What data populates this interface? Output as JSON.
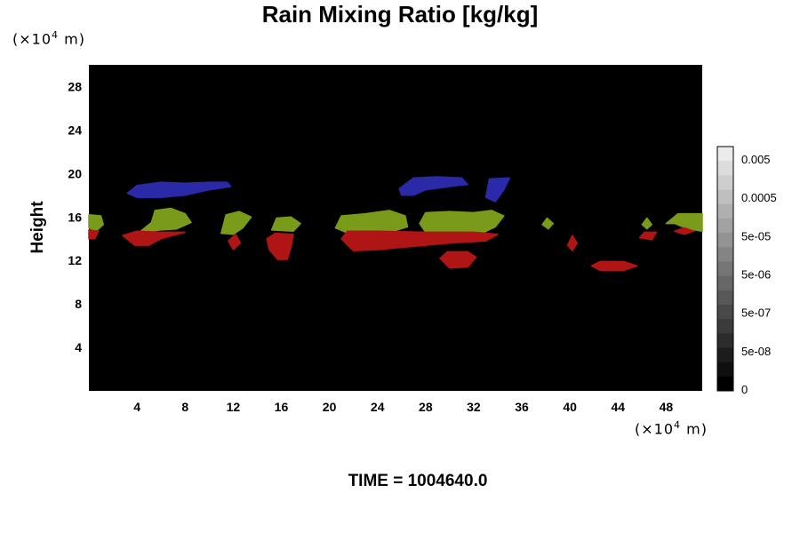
{
  "chart_data": {
    "type": "heatmap",
    "title": "Rain Mixing Ratio [kg/kg]",
    "ylabel": "Height",
    "xlabel": "",
    "x_unit": {
      "base": "(×10",
      "exp": "4",
      "tail": " m)"
    },
    "y_unit": {
      "base": "(×10",
      "exp": "4",
      "tail": " m)"
    },
    "xlim": [
      0,
      51
    ],
    "ylim": [
      0,
      30
    ],
    "x_ticks": [
      4,
      8,
      12,
      16,
      20,
      24,
      28,
      32,
      36,
      40,
      44,
      48
    ],
    "y_ticks": [
      4,
      8,
      12,
      16,
      20,
      24,
      28
    ],
    "background_color": "#000000",
    "colorbar": {
      "tick_labels": [
        "0.005",
        "0.0005",
        "5e-05",
        "5e-06",
        "5e-07",
        "5e-08",
        "0"
      ],
      "levels": 17
    },
    "regions": [
      {
        "color": "#2a2aa8",
        "points": [
          [
            3.2,
            18.2
          ],
          [
            4,
            18.9
          ],
          [
            6,
            19.2
          ],
          [
            8,
            19.1
          ],
          [
            10,
            19.2
          ],
          [
            11.5,
            19.2
          ],
          [
            11.8,
            18.8
          ],
          [
            10,
            18.5
          ],
          [
            8,
            18
          ],
          [
            6,
            17.8
          ],
          [
            4,
            17.8
          ]
        ]
      },
      {
        "color": "#2a2aa8",
        "points": [
          [
            25.8,
            18.6
          ],
          [
            27,
            19.6
          ],
          [
            29,
            19.7
          ],
          [
            31,
            19.6
          ],
          [
            31.5,
            19
          ],
          [
            30,
            18.8
          ],
          [
            28,
            18.5
          ],
          [
            27,
            18
          ],
          [
            26,
            18
          ]
        ]
      },
      {
        "color": "#2a2aa8",
        "points": [
          [
            33,
            17.8
          ],
          [
            33.3,
            19.5
          ],
          [
            35,
            19.6
          ],
          [
            34.5,
            18.5
          ],
          [
            33.8,
            17.4
          ]
        ]
      },
      {
        "color": "#7a9a1a",
        "points": [
          [
            0,
            15
          ],
          [
            0,
            16.2
          ],
          [
            1,
            16.1
          ],
          [
            1.2,
            15.3
          ],
          [
            0.6,
            14.7
          ]
        ]
      },
      {
        "color": "#7a9a1a",
        "points": [
          [
            4.2,
            14.6
          ],
          [
            5.2,
            15.5
          ],
          [
            5.5,
            16.6
          ],
          [
            6.8,
            16.8
          ],
          [
            8,
            16.3
          ],
          [
            8.5,
            15.5
          ],
          [
            7.3,
            14.9
          ],
          [
            6,
            14.8
          ]
        ]
      },
      {
        "color": "#7a9a1a",
        "points": [
          [
            11,
            14.5
          ],
          [
            11.4,
            16.2
          ],
          [
            12.5,
            16.5
          ],
          [
            13.5,
            16
          ],
          [
            12.8,
            15
          ],
          [
            12,
            14.4
          ]
        ]
      },
      {
        "color": "#7a9a1a",
        "points": [
          [
            15.2,
            14.8
          ],
          [
            15.6,
            15.9
          ],
          [
            16.8,
            16
          ],
          [
            17.6,
            15.4
          ],
          [
            17,
            14.7
          ]
        ]
      },
      {
        "color": "#7a9a1a",
        "points": [
          [
            20.5,
            15
          ],
          [
            21,
            16.1
          ],
          [
            23,
            16.3
          ],
          [
            25,
            16.6
          ],
          [
            26.3,
            16.1
          ],
          [
            26.5,
            15.1
          ],
          [
            24.5,
            14.4
          ],
          [
            22,
            14.3
          ]
        ]
      },
      {
        "color": "#7a9a1a",
        "points": [
          [
            27.5,
            15.4
          ],
          [
            28,
            16.4
          ],
          [
            30,
            16.5
          ],
          [
            32,
            16.4
          ],
          [
            33.5,
            16.6
          ],
          [
            34.5,
            16.1
          ],
          [
            33.8,
            15.1
          ],
          [
            32.5,
            14.4
          ],
          [
            30,
            14.4
          ],
          [
            28,
            14.6
          ]
        ]
      },
      {
        "color": "#7a9a1a",
        "points": [
          [
            37.7,
            15.3
          ],
          [
            38.1,
            15.9
          ],
          [
            38.6,
            15.4
          ],
          [
            38.2,
            14.9
          ]
        ]
      },
      {
        "color": "#7a9a1a",
        "points": [
          [
            46,
            15.3
          ],
          [
            46.4,
            15.9
          ],
          [
            46.8,
            15.3
          ],
          [
            46.4,
            14.9
          ]
        ]
      },
      {
        "color": "#7a9a1a",
        "points": [
          [
            48,
            15.4
          ],
          [
            49,
            16.3
          ],
          [
            51,
            16.3
          ],
          [
            51,
            14.7
          ],
          [
            49.8,
            14.9
          ],
          [
            48.7,
            15.4
          ]
        ]
      },
      {
        "color": "#b01515",
        "points": [
          [
            0,
            14
          ],
          [
            0,
            14.8
          ],
          [
            0.8,
            14.7
          ],
          [
            0.5,
            14
          ]
        ]
      },
      {
        "color": "#b01515",
        "points": [
          [
            2.8,
            14.3
          ],
          [
            4,
            14.7
          ],
          [
            6,
            14.6
          ],
          [
            8,
            14.6
          ],
          [
            6,
            14
          ],
          [
            5,
            13.4
          ],
          [
            3.8,
            13.4
          ]
        ]
      },
      {
        "color": "#b01515",
        "points": [
          [
            11.6,
            13.8
          ],
          [
            12.2,
            14.4
          ],
          [
            12.6,
            13.6
          ],
          [
            12,
            13
          ]
        ]
      },
      {
        "color": "#b01515",
        "points": [
          [
            14.8,
            14
          ],
          [
            15.5,
            14.5
          ],
          [
            17,
            14.4
          ],
          [
            16.8,
            13.2
          ],
          [
            16.5,
            12.1
          ],
          [
            15.7,
            12.1
          ],
          [
            15,
            13
          ]
        ]
      },
      {
        "color": "#b01515",
        "points": [
          [
            21,
            14
          ],
          [
            21.5,
            14.7
          ],
          [
            24,
            14.7
          ],
          [
            28,
            14.6
          ],
          [
            32,
            14.6
          ],
          [
            34,
            14.4
          ],
          [
            33,
            13.8
          ],
          [
            30,
            13.6
          ],
          [
            28,
            13.4
          ],
          [
            26,
            13.2
          ],
          [
            24,
            13
          ],
          [
            22,
            12.9
          ],
          [
            21.6,
            13.3
          ]
        ]
      },
      {
        "color": "#b01515",
        "points": [
          [
            29.2,
            12.2
          ],
          [
            29.8,
            12.8
          ],
          [
            31.5,
            12.8
          ],
          [
            32.2,
            12.3
          ],
          [
            31.5,
            11.4
          ],
          [
            30,
            11.3
          ]
        ]
      },
      {
        "color": "#b01515",
        "points": [
          [
            39.8,
            13.4
          ],
          [
            40.2,
            14.3
          ],
          [
            40.6,
            13.6
          ],
          [
            40.2,
            12.9
          ]
        ]
      },
      {
        "color": "#b01515",
        "points": [
          [
            41.8,
            11.5
          ],
          [
            42.5,
            11.9
          ],
          [
            44.5,
            11.9
          ],
          [
            45.6,
            11.5
          ],
          [
            44.5,
            11.1
          ],
          [
            42.5,
            11.1
          ]
        ]
      },
      {
        "color": "#b01515",
        "points": [
          [
            45.8,
            14.1
          ],
          [
            46.2,
            14.6
          ],
          [
            47.2,
            14.6
          ],
          [
            46.8,
            13.9
          ]
        ]
      },
      {
        "color": "#b01515",
        "points": [
          [
            48.7,
            14.7
          ],
          [
            49.5,
            15
          ],
          [
            50.3,
            14.7
          ],
          [
            49.5,
            14.4
          ]
        ]
      }
    ]
  },
  "footer": {
    "time_label": "TIME = 1004640.0"
  }
}
